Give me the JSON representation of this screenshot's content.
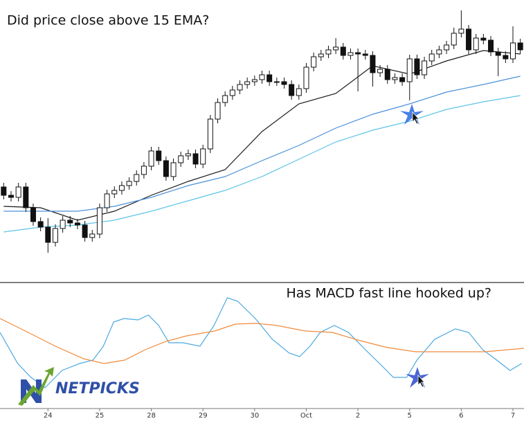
{
  "chart_data": [
    {
      "type": "candlestick",
      "title": "Did price close above 15 EMA?",
      "categories": [
        null,
        null,
        null,
        null,
        null,
        null,
        "24",
        null,
        null,
        null,
        null,
        null,
        null,
        "25",
        null,
        null,
        null,
        null,
        null,
        null,
        "28",
        null,
        null,
        null,
        null,
        null,
        null,
        "29",
        null,
        null,
        null,
        null,
        null,
        null,
        "30",
        null,
        null,
        null,
        null,
        null,
        null,
        "Oct",
        null,
        null,
        null,
        null,
        null,
        null,
        "2",
        null,
        null,
        null,
        null,
        null,
        null,
        "5",
        null,
        null,
        null,
        null,
        null,
        null,
        "6",
        null,
        null,
        null,
        null,
        null,
        null,
        "7",
        null
      ],
      "open": [
        130,
        118,
        115,
        130,
        100,
        80,
        72,
        50,
        70,
        82,
        78,
        75,
        57,
        62,
        100,
        120,
        125,
        132,
        138,
        148,
        160,
        182,
        168,
        145,
        165,
        175,
        178,
        163,
        185,
        228,
        252,
        262,
        270,
        278,
        282,
        285,
        292,
        282,
        282,
        278,
        262,
        272,
        303,
        318,
        322,
        328,
        332,
        320,
        324,
        322,
        320,
        295,
        300,
        285,
        288,
        282,
        315,
        292,
        312,
        322,
        328,
        335,
        352,
        358,
        328,
        345,
        342,
        325,
        320,
        315,
        338
      ],
      "high": [
        136,
        124,
        136,
        136,
        106,
        86,
        85,
        76,
        88,
        88,
        84,
        81,
        68,
        106,
        126,
        131,
        138,
        144,
        154,
        166,
        188,
        188,
        174,
        171,
        181,
        184,
        184,
        191,
        234,
        258,
        268,
        276,
        284,
        288,
        291,
        298,
        298,
        288,
        288,
        284,
        278,
        309,
        324,
        328,
        334,
        345,
        338,
        330,
        330,
        328,
        326,
        306,
        306,
        294,
        294,
        321,
        321,
        318,
        328,
        334,
        341,
        360,
        385,
        364,
        351,
        351,
        348,
        331,
        326,
        362,
        344
      ],
      "low": [
        112,
        109,
        109,
        94,
        74,
        66,
        35,
        44,
        64,
        72,
        69,
        51,
        51,
        56,
        94,
        114,
        119,
        126,
        132,
        142,
        154,
        162,
        139,
        139,
        159,
        169,
        157,
        157,
        179,
        222,
        246,
        256,
        264,
        272,
        276,
        279,
        276,
        276,
        272,
        256,
        256,
        266,
        297,
        312,
        316,
        322,
        314,
        314,
        268,
        314,
        275,
        289,
        279,
        279,
        276,
        255,
        286,
        286,
        306,
        316,
        322,
        329,
        346,
        322,
        322,
        336,
        319,
        290,
        309,
        309,
        322
      ],
      "close": [
        118,
        115,
        130,
        100,
        80,
        72,
        50,
        70,
        82,
        78,
        75,
        57,
        62,
        100,
        120,
        125,
        132,
        138,
        148,
        160,
        182,
        168,
        145,
        165,
        175,
        178,
        163,
        185,
        228,
        252,
        262,
        270,
        278,
        282,
        285,
        292,
        282,
        282,
        278,
        262,
        272,
        303,
        318,
        322,
        328,
        332,
        320,
        324,
        322,
        320,
        295,
        300,
        285,
        288,
        282,
        315,
        292,
        312,
        322,
        328,
        335,
        352,
        358,
        328,
        345,
        342,
        325,
        320,
        315,
        338,
        328
      ],
      "ylim": [
        -8,
        400
      ],
      "lines": [
        {
          "color": "#1a1a1a",
          "x": [
            0,
            5,
            10,
            15,
            20,
            25,
            30,
            35,
            40,
            45,
            50,
            55,
            60,
            65,
            70
          ],
          "values": [
            102,
            100,
            82,
            95,
            118,
            138,
            155,
            210,
            250,
            265,
            305,
            293,
            312,
            327,
            322
          ]
        },
        {
          "color": "#4a90d9",
          "x": [
            0,
            5,
            10,
            15,
            20,
            25,
            30,
            35,
            40,
            45,
            50,
            55,
            60,
            65,
            70
          ],
          "values": [
            95,
            95,
            95,
            102,
            115,
            132,
            145,
            168,
            190,
            215,
            235,
            250,
            267,
            278,
            290
          ]
        },
        {
          "color": "#5cc4e6",
          "x": [
            0,
            5,
            10,
            15,
            20,
            25,
            30,
            35,
            40,
            45,
            50,
            55,
            60,
            65,
            70
          ],
          "values": [
            65,
            72,
            75,
            82,
            95,
            110,
            125,
            145,
            170,
            195,
            212,
            225,
            242,
            253,
            262
          ]
        }
      ]
    },
    {
      "type": "line",
      "title": "Has MACD fast line hooked up?",
      "ylim": [
        10,
        190
      ],
      "series": [
        {
          "color": "#4aa8e0",
          "x": [
            -0.5,
            1.9,
            3.7,
            5.6,
            7.9,
            10.3,
            12.1,
            13.5,
            14.9,
            16.3,
            18.2,
            19.6,
            21,
            22.4,
            24.3,
            26.6,
            28.5,
            30.3,
            31.7,
            34.1,
            36.4,
            38.7,
            40.1,
            41.5,
            42.9,
            44.8,
            46.7,
            49,
            51.4,
            52.8,
            54.6,
            56,
            58.4,
            61.2,
            63,
            64.9,
            66.8,
            68.6,
            70.2
          ],
          "values": [
            120,
            75,
            55,
            40,
            65,
            75,
            80,
            100,
            135,
            140,
            138,
            145,
            130,
            105,
            105,
            100,
            130,
            170,
            165,
            140,
            110,
            90,
            85,
            100,
            120,
            130,
            120,
            95,
            70,
            55,
            55,
            80,
            110,
            125,
            120,
            95,
            80,
            65,
            75
          ]
        },
        {
          "color": "#f08a3a",
          "x": [
            -0.5,
            3.3,
            7,
            10.8,
            13.6,
            16.4,
            19.2,
            22,
            24.8,
            28.6,
            31.4,
            34.2,
            37,
            40.8,
            44.5,
            48.3,
            52,
            55.8,
            61.4,
            65.2,
            70.5
          ],
          "values": [
            140,
            120,
            100,
            82,
            75,
            80,
            95,
            107,
            115,
            122,
            132,
            133,
            130,
            122,
            120,
            108,
            98,
            92,
            92,
            92,
            97
          ]
        }
      ]
    },
    {
      "logo": "NETPICKS"
    }
  ]
}
